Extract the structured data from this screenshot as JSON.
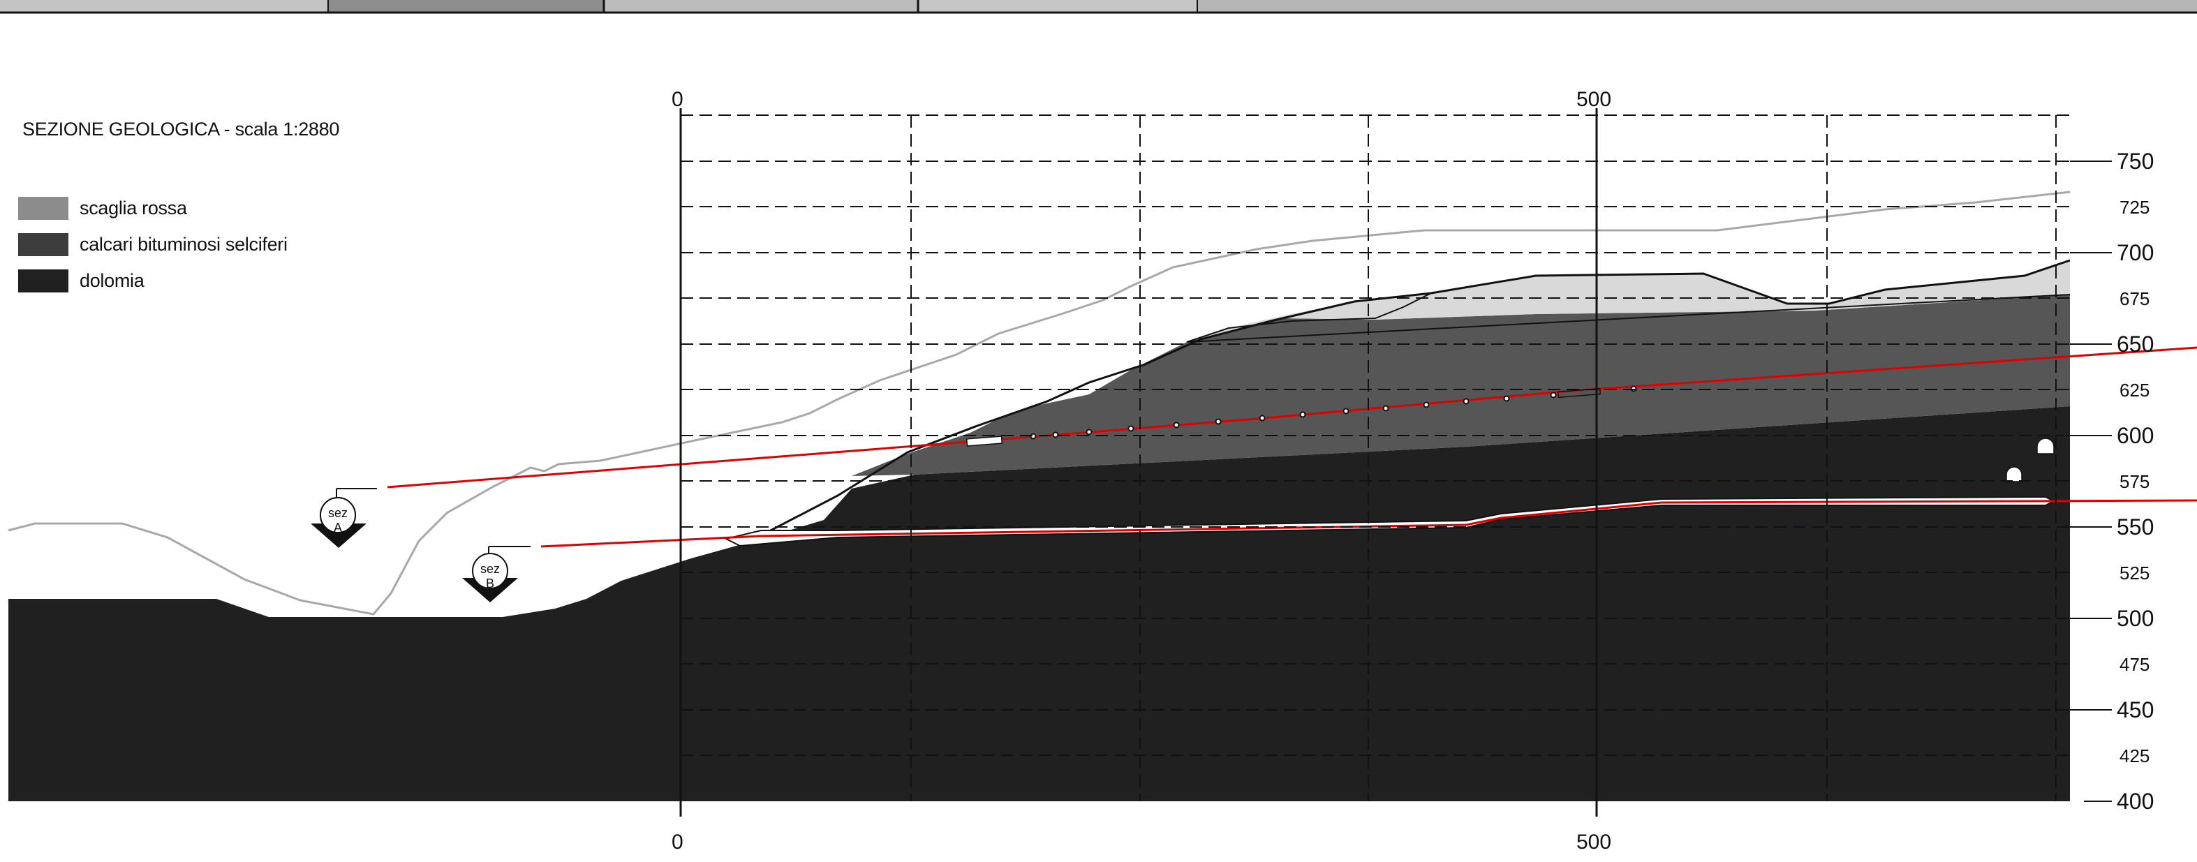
{
  "title": "SEZIONE GEOLOGICA - scala 1:2880",
  "legend": [
    {
      "label": "scaglia rossa",
      "color": "#8c8c8c"
    },
    {
      "label": "calcari bituminosi selciferi",
      "color": "#3c3c3c"
    },
    {
      "label": "dolomia",
      "color": "#202020"
    }
  ],
  "horizontal_scale": {
    "labels_top": [
      "0",
      "500"
    ],
    "labels_bottom": [
      "0",
      "500"
    ]
  },
  "elevation_axis": {
    "labels": [
      "750",
      "725",
      "700",
      "675",
      "650",
      "625",
      "600",
      "575",
      "550",
      "525",
      "500",
      "475",
      "450",
      "425",
      "400"
    ]
  },
  "section_markers": [
    {
      "top": "sez",
      "bottom": "A"
    },
    {
      "top": "sez",
      "bottom": "B"
    }
  ],
  "colors": {
    "dolomia": "#202020",
    "calcari": "#565656",
    "scaglia_surface": "#d9d9d9",
    "tunnel_line": "#e00000",
    "grid": "#111111",
    "terrain_profile_light": "#a8a8a8"
  }
}
